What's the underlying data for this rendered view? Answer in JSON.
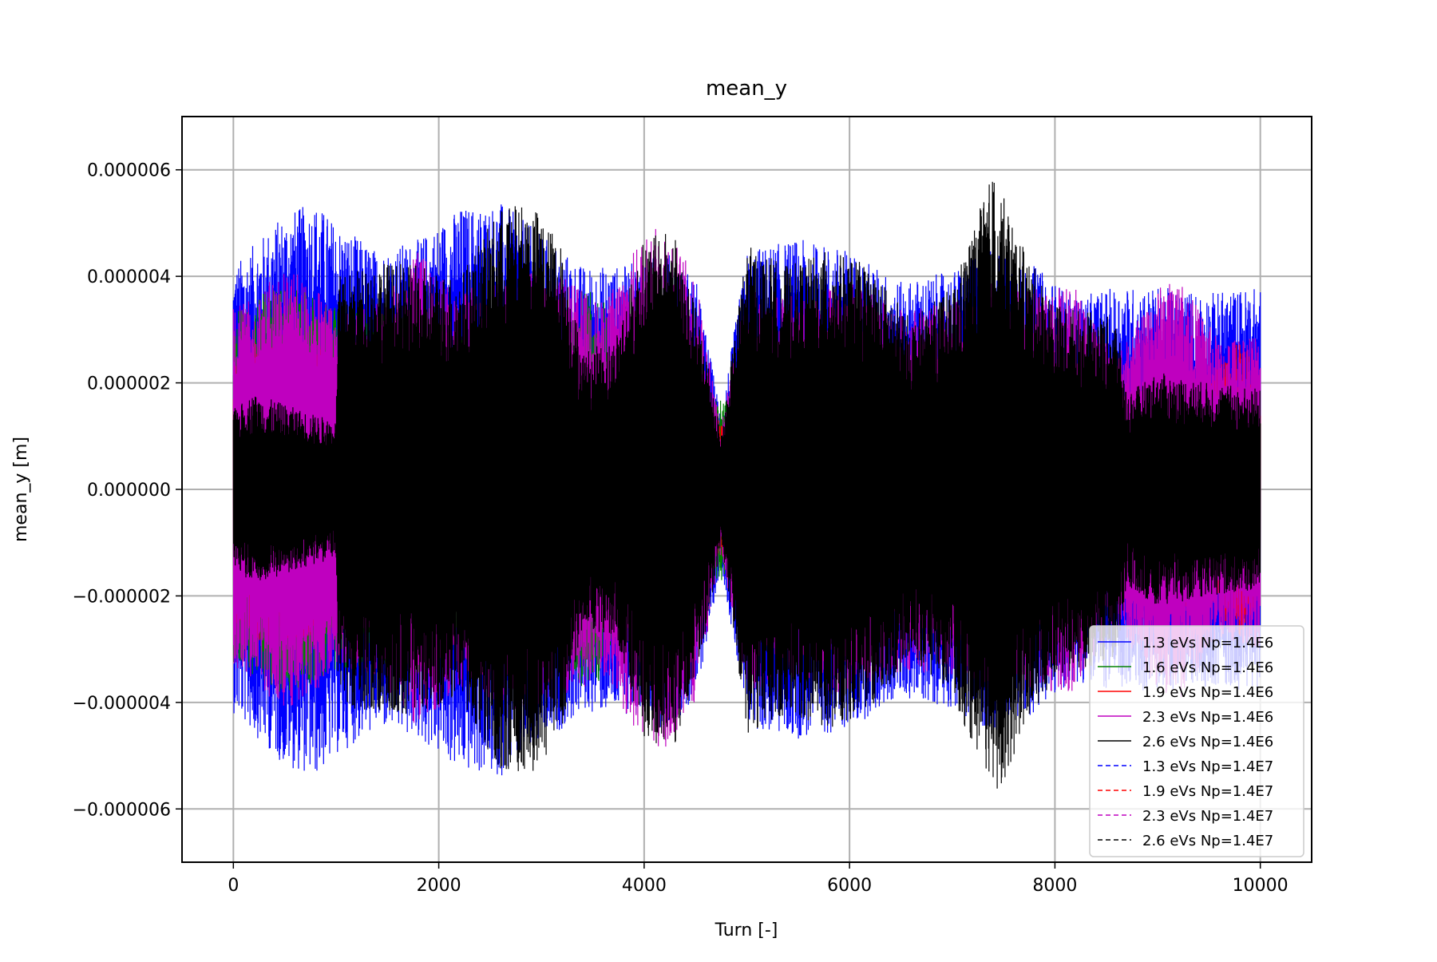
{
  "chart_data": {
    "type": "line",
    "title": "mean_y",
    "xlabel": "Turn [-]",
    "ylabel": "mean_y [m]",
    "xlim": [
      -500,
      10500
    ],
    "ylim": [
      -7e-06,
      7e-06
    ],
    "xticks": [
      0,
      2000,
      4000,
      6000,
      8000,
      10000
    ],
    "xtick_labels": [
      "0",
      "2000",
      "4000",
      "6000",
      "8000",
      "10000"
    ],
    "yticks": [
      6e-06,
      4e-06,
      2e-06,
      0.0,
      -2e-06,
      -4e-06,
      -6e-06
    ],
    "ytick_labels": [
      "0.000006",
      "0.000004",
      "0.000002",
      "0.000000",
      "−0.000002",
      "−0.000004",
      "−0.000006"
    ],
    "grid": true,
    "legend_position": "lower-right",
    "series": [
      {
        "name": "1.3 eVs Np=1.4E6",
        "color": "#0000ff",
        "style": "solid",
        "envelope": [
          [
            0,
            4.2e-06
          ],
          [
            200,
            4.6e-06
          ],
          [
            500,
            5.2e-06
          ],
          [
            800,
            5.4e-06
          ],
          [
            1000,
            5e-06
          ],
          [
            1400,
            4.5e-06
          ],
          [
            1800,
            4.7e-06
          ],
          [
            2200,
            5.3e-06
          ],
          [
            2600,
            5.4e-06
          ],
          [
            3000,
            4.8e-06
          ],
          [
            3400,
            4.2e-06
          ],
          [
            3800,
            4.2e-06
          ],
          [
            4200,
            4.5e-06
          ],
          [
            4500,
            4e-06
          ],
          [
            4750,
            1.4e-06
          ],
          [
            5000,
            4.5e-06
          ],
          [
            5500,
            4.7e-06
          ],
          [
            6000,
            4.5e-06
          ],
          [
            6500,
            3.9e-06
          ],
          [
            7000,
            4.1e-06
          ],
          [
            7400,
            4.6e-06
          ],
          [
            7800,
            4.2e-06
          ],
          [
            8200,
            3.6e-06
          ],
          [
            8600,
            3.8e-06
          ],
          [
            9000,
            3.8e-06
          ],
          [
            9500,
            3.7e-06
          ],
          [
            10000,
            3.8e-06
          ]
        ]
      },
      {
        "name": "1.6 eVs Np=1.4E6",
        "color": "#008000",
        "style": "solid",
        "envelope": [
          [
            0,
            3.3e-06
          ],
          [
            200,
            3.5e-06
          ],
          [
            400,
            3.9e-06
          ],
          [
            700,
            3.7e-06
          ],
          [
            1000,
            3.4e-06
          ],
          [
            1300,
            3.3e-06
          ],
          [
            1800,
            3.5e-06
          ],
          [
            2200,
            2.9e-06
          ],
          [
            2600,
            2.2e-06
          ],
          [
            3000,
            2.4e-06
          ],
          [
            3400,
            3.8e-06
          ],
          [
            3600,
            3.6e-06
          ],
          [
            3800,
            2.2e-06
          ],
          [
            4200,
            2e-06
          ],
          [
            4600,
            1.6e-06
          ],
          [
            5000,
            2e-06
          ],
          [
            6000,
            1.9e-06
          ],
          [
            7000,
            2e-06
          ],
          [
            8000,
            1.8e-06
          ],
          [
            9000,
            1.8e-06
          ],
          [
            10000,
            1.7e-06
          ]
        ]
      },
      {
        "name": "1.9 eVs Np=1.4E6",
        "color": "#ff0000",
        "style": "solid",
        "envelope": [
          [
            0,
            2.6e-06
          ],
          [
            200,
            2.8e-06
          ],
          [
            500,
            3e-06
          ],
          [
            800,
            2.7e-06
          ],
          [
            1000,
            2.4e-06
          ],
          [
            1400,
            1.9e-06
          ],
          [
            2000,
            1.6e-06
          ],
          [
            3000,
            1.7e-06
          ],
          [
            4000,
            1.5e-06
          ],
          [
            4750,
            1.3e-06
          ],
          [
            5000,
            1.7e-06
          ],
          [
            6000,
            1.6e-06
          ],
          [
            7000,
            1.9e-06
          ],
          [
            8000,
            1.8e-06
          ],
          [
            8700,
            1.8e-06
          ],
          [
            9000,
            2.4e-06
          ],
          [
            9500,
            2.1e-06
          ],
          [
            9800,
            2.8e-06
          ],
          [
            10000,
            2.2e-06
          ]
        ]
      },
      {
        "name": "2.3 eVs Np=1.4E6",
        "color": "#bf00bf",
        "style": "solid",
        "envelope": [
          [
            0,
            3.4e-06
          ],
          [
            200,
            3.6e-06
          ],
          [
            500,
            4.2e-06
          ],
          [
            800,
            3.8e-06
          ],
          [
            1000,
            3.3e-06
          ],
          [
            1400,
            3.5e-06
          ],
          [
            1800,
            4.5e-06
          ],
          [
            2200,
            3.7e-06
          ],
          [
            2800,
            4.2e-06
          ],
          [
            3200,
            4e-06
          ],
          [
            3600,
            3.5e-06
          ],
          [
            4000,
            4.8e-06
          ],
          [
            4200,
            5e-06
          ],
          [
            4500,
            4e-06
          ],
          [
            4750,
            1.2e-06
          ],
          [
            5000,
            3.8e-06
          ],
          [
            5500,
            3.6e-06
          ],
          [
            6000,
            3.9e-06
          ],
          [
            6500,
            3.4e-06
          ],
          [
            7000,
            3.5e-06
          ],
          [
            7400,
            3.9e-06
          ],
          [
            7800,
            3.8e-06
          ],
          [
            8200,
            3.8e-06
          ],
          [
            8600,
            2.5e-06
          ],
          [
            9000,
            3.8e-06
          ],
          [
            9200,
            4e-06
          ],
          [
            9600,
            2.8e-06
          ],
          [
            10000,
            3e-06
          ]
        ]
      },
      {
        "name": "2.6 eVs Np=1.4E6",
        "color": "#000000",
        "style": "solid",
        "envelope": [
          [
            0,
            1.5e-06
          ],
          [
            200,
            1.8e-06
          ],
          [
            500,
            1.6e-06
          ],
          [
            800,
            1.4e-06
          ],
          [
            1000,
            1.3e-06
          ],
          [
            1020,
            4e-06
          ],
          [
            1400,
            4.3e-06
          ],
          [
            1800,
            4.2e-06
          ],
          [
            2200,
            4e-06
          ],
          [
            2600,
            5.3e-06
          ],
          [
            2900,
            5.4e-06
          ],
          [
            3200,
            4.6e-06
          ],
          [
            3400,
            2.6e-06
          ],
          [
            3700,
            2.8e-06
          ],
          [
            4000,
            4.7e-06
          ],
          [
            4300,
            4.9e-06
          ],
          [
            4600,
            2.7e-06
          ],
          [
            4750,
            1e-06
          ],
          [
            5000,
            4.6e-06
          ],
          [
            5400,
            4.2e-06
          ],
          [
            5800,
            4.5e-06
          ],
          [
            6200,
            4.2e-06
          ],
          [
            6600,
            3.2e-06
          ],
          [
            7000,
            3.8e-06
          ],
          [
            7400,
            6e-06
          ],
          [
            7700,
            4.5e-06
          ],
          [
            8000,
            3.5e-06
          ],
          [
            8400,
            3.3e-06
          ],
          [
            8600,
            3.2e-06
          ],
          [
            8700,
            1.8e-06
          ],
          [
            9000,
            2.2e-06
          ],
          [
            9500,
            2e-06
          ],
          [
            10000,
            1.9e-06
          ]
        ]
      },
      {
        "name": "1.3 eVs Np=1.4E7",
        "color": "#0000ff",
        "style": "dashed",
        "envelope": []
      },
      {
        "name": "1.9 eVs Np=1.4E7",
        "color": "#ff0000",
        "style": "dashed",
        "envelope": []
      },
      {
        "name": "2.3 eVs Np=1.4E7",
        "color": "#bf00bf",
        "style": "dashed",
        "envelope": []
      },
      {
        "name": "2.6 eVs Np=1.4E7",
        "color": "#000000",
        "style": "dashed",
        "envelope": []
      }
    ]
  }
}
